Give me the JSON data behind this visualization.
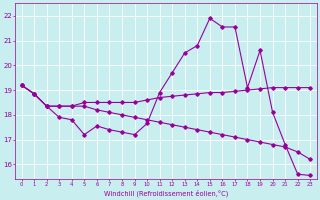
{
  "xlabel": "Windchill (Refroidissement éolien,°C)",
  "background_color": "#c8eef0",
  "line_color": "#990099",
  "grid_color": "#ffffff",
  "x_ticks": [
    0,
    1,
    2,
    3,
    4,
    5,
    6,
    7,
    8,
    9,
    10,
    11,
    12,
    13,
    14,
    15,
    16,
    17,
    18,
    19,
    20,
    21,
    22,
    23
  ],
  "y_ticks": [
    16,
    17,
    18,
    19,
    20,
    21,
    22
  ],
  "xlim": [
    -0.5,
    23.5
  ],
  "ylim": [
    15.4,
    22.5
  ],
  "line1_x": [
    0,
    1,
    2,
    3,
    4,
    5,
    6,
    7,
    8,
    9,
    10,
    11,
    12,
    13,
    14,
    15,
    16,
    17,
    18,
    19,
    20,
    21,
    22,
    23
  ],
  "line1_y": [
    19.2,
    18.85,
    18.35,
    17.9,
    17.8,
    17.2,
    17.55,
    17.4,
    17.3,
    17.2,
    17.65,
    18.9,
    19.7,
    20.5,
    20.8,
    21.9,
    21.55,
    21.55,
    19.1,
    20.6,
    18.1,
    16.8,
    15.6,
    15.55
  ],
  "line2_x": [
    0,
    1,
    2,
    3,
    4,
    5,
    6,
    7,
    8,
    9,
    10,
    11,
    12,
    13,
    14,
    15,
    16,
    17,
    18,
    19,
    20,
    21,
    22,
    23
  ],
  "line2_y": [
    19.2,
    18.85,
    18.35,
    18.35,
    18.35,
    18.5,
    18.5,
    18.5,
    18.5,
    18.5,
    18.6,
    18.7,
    18.75,
    18.8,
    18.85,
    18.9,
    18.9,
    18.95,
    19.0,
    19.05,
    19.1,
    19.1,
    19.1,
    19.1
  ],
  "line3_x": [
    0,
    1,
    2,
    3,
    4,
    5,
    6,
    7,
    8,
    9,
    10,
    11,
    12,
    13,
    14,
    15,
    16,
    17,
    18,
    19,
    20,
    21,
    22,
    23
  ],
  "line3_y": [
    19.2,
    18.85,
    18.35,
    18.35,
    18.35,
    18.35,
    18.2,
    18.1,
    18.0,
    17.9,
    17.8,
    17.7,
    17.6,
    17.5,
    17.4,
    17.3,
    17.2,
    17.1,
    17.0,
    16.9,
    16.8,
    16.7,
    16.5,
    16.2
  ]
}
